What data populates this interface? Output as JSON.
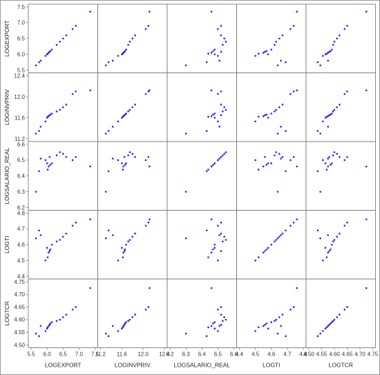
{
  "chart_data": {
    "type": "scatter",
    "subtype": "scatterplot-matrix",
    "variables": [
      {
        "name": "LOGEXPORT",
        "range": [
          5.5,
          7.5
        ],
        "ticks": [
          "5.5",
          "6.0",
          "6.5",
          "7.0",
          "7.5"
        ]
      },
      {
        "name": "LOGINVPRIV",
        "range": [
          11.2,
          12.4
        ],
        "ticks": [
          "11.2",
          "11.6",
          "12.0",
          "12.4"
        ]
      },
      {
        "name": "LOGSALARIO_REAL",
        "range": [
          6.2,
          6.6
        ],
        "ticks": [
          "6.2",
          "6.3",
          "6.4",
          "6.5",
          "6.6"
        ]
      },
      {
        "name": "LOGTI",
        "range": [
          4.4,
          4.8
        ],
        "ticks": [
          "4.4",
          "4.5",
          "4.6",
          "4.7",
          "4.8"
        ]
      },
      {
        "name": "LOGTCR",
        "range": [
          4.5,
          4.75
        ],
        "ticks": [
          "4.50",
          "4.55",
          "4.60",
          "4.65",
          "4.70",
          "4.75"
        ]
      }
    ],
    "observations": [
      [
        5.65,
        11.3,
        6.3,
        4.64,
        4.545
      ],
      [
        5.75,
        11.35,
        6.43,
        4.69,
        4.535
      ],
      [
        5.8,
        11.43,
        6.51,
        4.66,
        4.575
      ],
      [
        5.95,
        11.53,
        6.5,
        4.5,
        4.555
      ],
      [
        6.0,
        11.6,
        6.48,
        4.58,
        4.565
      ],
      [
        6.02,
        11.62,
        6.44,
        4.52,
        4.57
      ],
      [
        6.05,
        11.63,
        6.46,
        4.55,
        4.575
      ],
      [
        6.08,
        11.65,
        6.52,
        4.56,
        4.58
      ],
      [
        6.1,
        11.66,
        6.47,
        4.57,
        4.585
      ],
      [
        6.15,
        11.68,
        6.48,
        4.6,
        4.59
      ],
      [
        6.3,
        11.72,
        6.53,
        4.62,
        4.595
      ],
      [
        6.4,
        11.75,
        6.55,
        4.63,
        4.6
      ],
      [
        6.5,
        11.8,
        6.54,
        4.65,
        4.61
      ],
      [
        6.6,
        11.85,
        6.52,
        4.67,
        4.62
      ],
      [
        6.8,
        12.05,
        6.5,
        4.72,
        4.64
      ],
      [
        6.9,
        12.1,
        6.52,
        4.74,
        4.65
      ],
      [
        7.35,
        12.12,
        6.46,
        4.76,
        4.725
      ]
    ],
    "grid": false,
    "marker_color": "#1f1fff"
  }
}
